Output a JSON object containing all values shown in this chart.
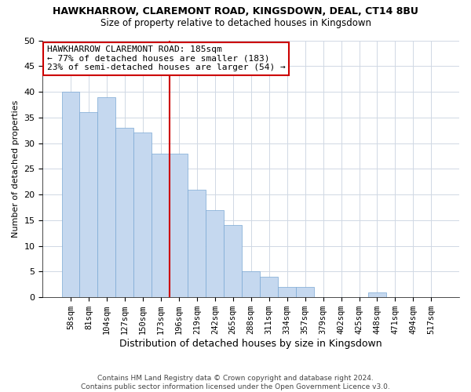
{
  "title": "HAWKHARROW, CLAREMONT ROAD, KINGSDOWN, DEAL, CT14 8BU",
  "subtitle": "Size of property relative to detached houses in Kingsdown",
  "xlabel": "Distribution of detached houses by size in Kingsdown",
  "ylabel": "Number of detached properties",
  "footer_line1": "Contains HM Land Registry data © Crown copyright and database right 2024.",
  "footer_line2": "Contains public sector information licensed under the Open Government Licence v3.0.",
  "categories": [
    "58sqm",
    "81sqm",
    "104sqm",
    "127sqm",
    "150sqm",
    "173sqm",
    "196sqm",
    "219sqm",
    "242sqm",
    "265sqm",
    "288sqm",
    "311sqm",
    "334sqm",
    "357sqm",
    "379sqm",
    "402sqm",
    "425sqm",
    "448sqm",
    "471sqm",
    "494sqm",
    "517sqm"
  ],
  "values": [
    40,
    36,
    39,
    33,
    32,
    28,
    28,
    21,
    17,
    14,
    5,
    4,
    2,
    2,
    0,
    0,
    0,
    1,
    0,
    0,
    0
  ],
  "bar_color": "#c5d8ef",
  "bar_edge_color": "#7aa8d4",
  "vline_x": 5.5,
  "vline_color": "#cc0000",
  "annotation_text": "HAWKHARROW CLAREMONT ROAD: 185sqm\n← 77% of detached houses are smaller (183)\n23% of semi-detached houses are larger (54) →",
  "annotation_box_color": "#cc0000",
  "ylim": [
    0,
    50
  ],
  "yticks": [
    0,
    5,
    10,
    15,
    20,
    25,
    30,
    35,
    40,
    45,
    50
  ],
  "bg_color": "#ffffff",
  "grid_color": "#d0d8e4"
}
